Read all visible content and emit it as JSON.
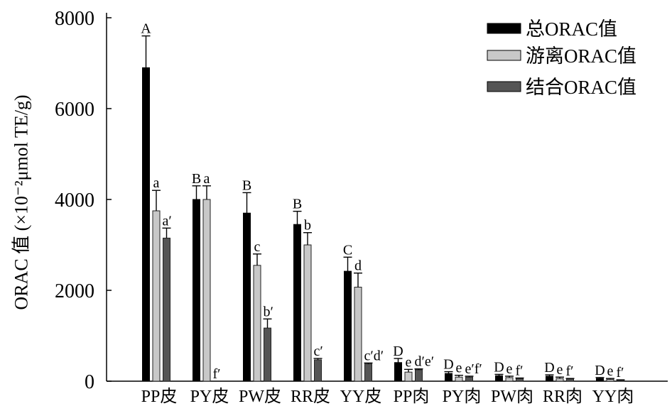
{
  "chart_data": {
    "type": "bar",
    "categories": [
      "PP皮",
      "PY皮",
      "PW皮",
      "RR皮",
      "YY皮",
      "PP肉",
      "PY肉",
      "PW肉",
      "RR肉",
      "YY肉"
    ],
    "xlabel": "",
    "ylabel": "ORAC 值 (×10⁻²μmol TE/g)",
    "ylim": [
      0,
      8000
    ],
    "yticks": [
      0,
      2000,
      4000,
      6000,
      8000
    ],
    "grid": false,
    "legend_position": "top-right",
    "series": [
      {
        "name": "总ORAC值",
        "color": "#000000",
        "values": [
          6900,
          4000,
          3700,
          3450,
          2420,
          410,
          170,
          120,
          110,
          60
        ],
        "errors": [
          700,
          300,
          450,
          290,
          310,
          90,
          40,
          30,
          30,
          20
        ],
        "labels": [
          "A",
          "B",
          "B",
          "B",
          "C",
          "D",
          "D",
          "D",
          "D",
          "D"
        ]
      },
      {
        "name": "游离ORAC值",
        "color": "#c8c8c8",
        "values": [
          3750,
          4000,
          2550,
          3000,
          2070,
          200,
          90,
          80,
          60,
          40
        ],
        "errors": [
          450,
          300,
          250,
          270,
          310,
          60,
          40,
          30,
          30,
          20
        ],
        "labels": [
          "a",
          "a",
          "c",
          "b",
          "d",
          "e",
          "e",
          "e",
          "e",
          "e"
        ]
      },
      {
        "name": "结合ORAC值",
        "color": "#555555",
        "values": [
          3150,
          0,
          1170,
          470,
          380,
          250,
          90,
          60,
          50,
          20
        ],
        "errors": [
          220,
          0,
          200,
          30,
          20,
          20,
          20,
          10,
          10,
          10
        ],
        "labels": [
          "a′",
          "f′",
          "b′",
          "c′",
          "c′d′",
          "d′e′",
          "e′f′",
          "f′",
          "f′",
          "f′"
        ]
      }
    ]
  }
}
